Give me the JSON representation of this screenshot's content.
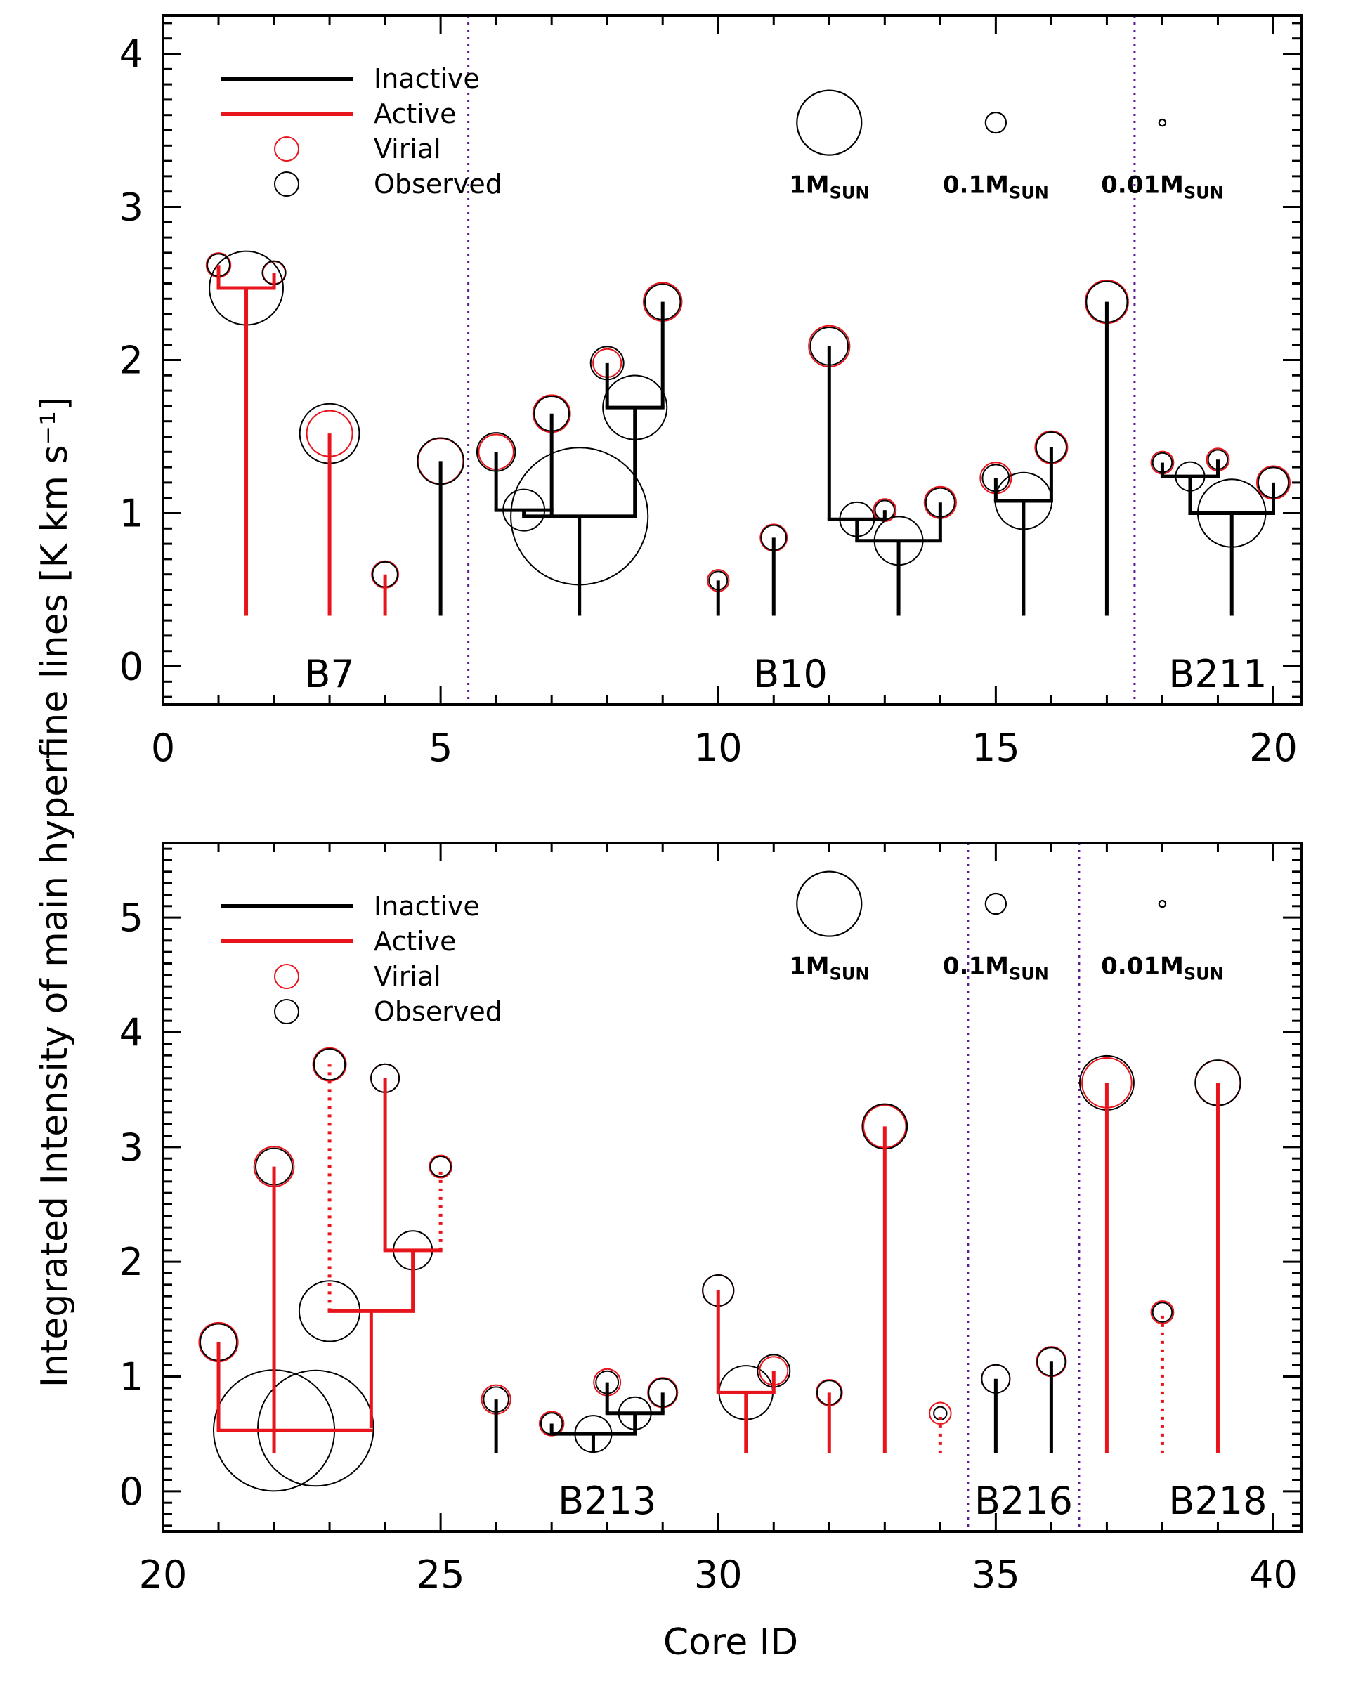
{
  "figure": {
    "ylabel": "Integrated Intensity of main hyperfine lines [K km s⁻¹]",
    "xlabel": "Core ID"
  },
  "legend": {
    "inactive": "Inactive",
    "active": "Active",
    "virial": "Virial",
    "observed": "Observed"
  },
  "colors": {
    "inactive": "#000000",
    "active": "#e8141b",
    "boundary": "#5a1a96",
    "virial_circle": "#e8141b",
    "observed_circle": "#000000"
  },
  "chart_data": [
    {
      "type": "dendrogram",
      "xlim": [
        0,
        20.5
      ],
      "ylim": [
        -0.25,
        4.25
      ],
      "xticks": [
        0,
        5,
        10,
        15,
        20
      ],
      "yticks": [
        0,
        1,
        2,
        3,
        4
      ],
      "boundaries": [
        5.5,
        17.5
      ],
      "regions": [
        {
          "name": "B7",
          "x": 3
        },
        {
          "name": "B10",
          "x": 11.3
        },
        {
          "name": "B211",
          "x": 19
        }
      ],
      "scale_circles": [
        {
          "label": "1M",
          "sub": "SUN",
          "mass": 1,
          "x": 12,
          "y": 3.55
        },
        {
          "label": "0.1M",
          "sub": "SUN",
          "mass": 0.1,
          "x": 15,
          "y": 3.55
        },
        {
          "label": "0.01M",
          "sub": "SUN",
          "mass": 0.01,
          "x": 18,
          "y": 3.55
        }
      ],
      "branches": [
        {
          "x": 1,
          "y": 2.62,
          "from": 2.47,
          "cls": "active"
        },
        {
          "x": 2,
          "y": 2.57,
          "from": 2.47,
          "cls": "active"
        },
        {
          "x": 1.5,
          "y": 2.47,
          "from": 0.33,
          "cls": "active"
        },
        {
          "x": 3,
          "y": 1.52,
          "from": 0.33,
          "cls": "active"
        },
        {
          "x": 4,
          "y": 0.6,
          "from": 0.33,
          "cls": "active"
        },
        {
          "x": 5,
          "y": 1.34,
          "from": 0.33,
          "cls": "inactive"
        },
        {
          "x": 6,
          "y": 1.4,
          "from": 1.02,
          "cls": "inactive"
        },
        {
          "x": 7,
          "y": 1.65,
          "from": 0.99,
          "cls": "inactive"
        },
        {
          "x": 6.5,
          "y": 1.02,
          "from": 0.98,
          "cls": "inactive"
        },
        {
          "x": 8,
          "y": 1.98,
          "from": 1.69,
          "cls": "inactive"
        },
        {
          "x": 9,
          "y": 2.38,
          "from": 1.69,
          "cls": "inactive"
        },
        {
          "x": 8.5,
          "y": 1.69,
          "from": 0.98,
          "cls": "inactive"
        },
        {
          "x": 7.5,
          "y": 0.98,
          "from": 0.33,
          "cls": "inactive"
        },
        {
          "x": 10,
          "y": 0.56,
          "from": 0.33,
          "cls": "inactive"
        },
        {
          "x": 11,
          "y": 0.84,
          "from": 0.33,
          "cls": "inactive"
        },
        {
          "x": 12,
          "y": 2.09,
          "from": 0.96,
          "cls": "inactive"
        },
        {
          "x": 13,
          "y": 1.02,
          "from": 0.96,
          "cls": "inactive"
        },
        {
          "x": 12.5,
          "y": 0.96,
          "from": 0.82,
          "cls": "inactive"
        },
        {
          "x": 14,
          "y": 1.07,
          "from": 0.82,
          "cls": "inactive"
        },
        {
          "x": 13.25,
          "y": 0.82,
          "from": 0.33,
          "cls": "inactive"
        },
        {
          "x": 15,
          "y": 1.23,
          "from": 1.08,
          "cls": "inactive"
        },
        {
          "x": 16,
          "y": 1.43,
          "from": 1.08,
          "cls": "inactive"
        },
        {
          "x": 15.5,
          "y": 1.08,
          "from": 0.33,
          "cls": "inactive"
        },
        {
          "x": 17,
          "y": 2.38,
          "from": 0.33,
          "cls": "inactive"
        },
        {
          "x": 18,
          "y": 1.33,
          "from": 1.24,
          "cls": "inactive"
        },
        {
          "x": 19,
          "y": 1.35,
          "from": 1.24,
          "cls": "inactive"
        },
        {
          "x": 18.5,
          "y": 1.24,
          "from": 1.0,
          "cls": "inactive"
        },
        {
          "x": 20,
          "y": 1.2,
          "from": 1.0,
          "cls": "inactive"
        },
        {
          "x": 19.25,
          "y": 1.0,
          "from": 0.33,
          "cls": "inactive"
        }
      ],
      "joins": [
        {
          "x1": 1,
          "x2": 2,
          "y": 2.47,
          "cls": "active"
        },
        {
          "x1": 6,
          "x2": 7,
          "y": 1.02,
          "cls": "inactive"
        },
        {
          "x1": 8,
          "x2": 9,
          "y": 1.69,
          "cls": "inactive"
        },
        {
          "x1": 6.5,
          "x2": 8.5,
          "y": 0.98,
          "cls": "inactive"
        },
        {
          "x1": 12,
          "x2": 13,
          "y": 0.96,
          "cls": "inactive"
        },
        {
          "x1": 12.5,
          "x2": 14,
          "y": 0.82,
          "cls": "inactive"
        },
        {
          "x1": 15,
          "x2": 16,
          "y": 1.08,
          "cls": "inactive"
        },
        {
          "x1": 18,
          "x2": 19,
          "y": 1.24,
          "cls": "inactive"
        },
        {
          "x1": 18.5,
          "x2": 20,
          "y": 1.0,
          "cls": "inactive"
        }
      ],
      "circles": [
        {
          "x": 1,
          "y": 2.62,
          "observed": 0.12,
          "virial": 0.14
        },
        {
          "x": 2,
          "y": 2.57,
          "observed": 0.13,
          "virial": 0.12
        },
        {
          "x": 1.5,
          "y": 2.47,
          "observed": 1.3,
          "virial": null
        },
        {
          "x": 3,
          "y": 1.52,
          "observed": 0.85,
          "virial": 0.5
        },
        {
          "x": 4,
          "y": 0.6,
          "observed": 0.15,
          "virial": 0.17
        },
        {
          "x": 5,
          "y": 1.34,
          "observed": 0.51,
          "virial": 0.49
        },
        {
          "x": 6,
          "y": 1.4,
          "observed": 0.35,
          "virial": 0.29
        },
        {
          "x": 6.5,
          "y": 1.02,
          "observed": 0.41,
          "virial": null
        },
        {
          "x": 7,
          "y": 1.65,
          "observed": 0.29,
          "virial": 0.33
        },
        {
          "x": 7.5,
          "y": 0.98,
          "observed": 4.5,
          "virial": null
        },
        {
          "x": 8,
          "y": 1.98,
          "observed": 0.26,
          "virial": 0.19
        },
        {
          "x": 8.5,
          "y": 1.69,
          "observed": 0.98,
          "virial": null
        },
        {
          "x": 9,
          "y": 2.38,
          "observed": 0.3,
          "virial": 0.35
        },
        {
          "x": 10,
          "y": 0.56,
          "observed": 0.08,
          "virial": 0.11
        },
        {
          "x": 11,
          "y": 0.84,
          "observed": 0.15,
          "virial": 0.17
        },
        {
          "x": 12,
          "y": 2.09,
          "observed": 0.34,
          "virial": 0.4
        },
        {
          "x": 12.5,
          "y": 0.96,
          "observed": 0.28,
          "virial": null
        },
        {
          "x": 13,
          "y": 1.02,
          "observed": 0.09,
          "virial": 0.12
        },
        {
          "x": 13.25,
          "y": 0.82,
          "observed": 0.56,
          "virial": null
        },
        {
          "x": 14,
          "y": 1.07,
          "observed": 0.2,
          "virial": 0.24
        },
        {
          "x": 15,
          "y": 1.23,
          "observed": 0.17,
          "virial": 0.23
        },
        {
          "x": 15.5,
          "y": 1.08,
          "observed": 0.77,
          "virial": null
        },
        {
          "x": 16,
          "y": 1.43,
          "observed": 0.22,
          "virial": 0.25
        },
        {
          "x": 17,
          "y": 2.38,
          "observed": 0.4,
          "virial": 0.44
        },
        {
          "x": 18,
          "y": 1.33,
          "observed": 0.09,
          "virial": 0.12
        },
        {
          "x": 18.5,
          "y": 1.24,
          "observed": 0.2,
          "virial": null
        },
        {
          "x": 19,
          "y": 1.35,
          "observed": 0.09,
          "virial": 0.12
        },
        {
          "x": 19.25,
          "y": 1.0,
          "observed": 1.1,
          "virial": null
        },
        {
          "x": 20,
          "y": 1.2,
          "observed": 0.22,
          "virial": 0.26
        }
      ]
    },
    {
      "type": "dendrogram",
      "xlim": [
        20,
        40.5
      ],
      "ylim": [
        -0.35,
        5.65
      ],
      "xticks": [
        20,
        25,
        30,
        35,
        40
      ],
      "yticks": [
        0,
        1,
        2,
        3,
        4,
        5
      ],
      "boundaries": [
        34.5,
        36.5
      ],
      "regions": [
        {
          "name": "B213",
          "x": 28
        },
        {
          "name": "B216",
          "x": 35.5
        },
        {
          "name": "B218",
          "x": 39
        }
      ],
      "scale_circles": [
        {
          "label": "1M",
          "sub": "SUN",
          "mass": 1,
          "x": 32,
          "y": 5.12
        },
        {
          "label": "0.1M",
          "sub": "SUN",
          "mass": 0.1,
          "x": 35,
          "y": 5.12
        },
        {
          "label": "0.01M",
          "sub": "SUN",
          "mass": 0.01,
          "x": 38,
          "y": 5.12
        }
      ],
      "branches": [
        {
          "x": 21,
          "y": 1.3,
          "from": 0.53,
          "cls": "active"
        },
        {
          "x": 22,
          "y": 2.83,
          "from": 0.53,
          "cls": "active"
        },
        {
          "x": 23,
          "y": 3.72,
          "from": 1.57,
          "cls": "active",
          "dotted": true
        },
        {
          "x": 24,
          "y": 3.6,
          "from": 2.1,
          "cls": "active"
        },
        {
          "x": 25,
          "y": 2.83,
          "from": 2.1,
          "cls": "active",
          "dotted": true
        },
        {
          "x": 24.5,
          "y": 2.1,
          "from": 1.57,
          "cls": "active"
        },
        {
          "x": 23.75,
          "y": 1.57,
          "from": 0.55,
          "cls": "active"
        },
        {
          "x": 22,
          "y": 0.53,
          "from": 0.33,
          "cls": "active"
        },
        {
          "x": 26,
          "y": 0.8,
          "from": 0.33,
          "cls": "inactive"
        },
        {
          "x": 27,
          "y": 0.59,
          "from": 0.5,
          "cls": "inactive"
        },
        {
          "x": 28,
          "y": 0.95,
          "from": 0.68,
          "cls": "inactive"
        },
        {
          "x": 29,
          "y": 0.86,
          "from": 0.68,
          "cls": "inactive"
        },
        {
          "x": 28.5,
          "y": 0.68,
          "from": 0.5,
          "cls": "inactive"
        },
        {
          "x": 27.75,
          "y": 0.5,
          "from": 0.33,
          "cls": "inactive"
        },
        {
          "x": 30,
          "y": 1.75,
          "from": 0.86,
          "cls": "active"
        },
        {
          "x": 31,
          "y": 1.05,
          "from": 0.86,
          "cls": "active"
        },
        {
          "x": 30.5,
          "y": 0.86,
          "from": 0.33,
          "cls": "active"
        },
        {
          "x": 32,
          "y": 0.86,
          "from": 0.33,
          "cls": "active"
        },
        {
          "x": 33,
          "y": 3.18,
          "from": 0.33,
          "cls": "active"
        },
        {
          "x": 34,
          "y": 0.68,
          "from": 0.33,
          "cls": "active",
          "dotted": true
        },
        {
          "x": 35,
          "y": 0.98,
          "from": 0.33,
          "cls": "inactive"
        },
        {
          "x": 36,
          "y": 1.13,
          "from": 0.33,
          "cls": "inactive"
        },
        {
          "x": 37,
          "y": 3.56,
          "from": 0.33,
          "cls": "active"
        },
        {
          "x": 38,
          "y": 1.56,
          "from": 0.33,
          "cls": "active",
          "dotted": true
        },
        {
          "x": 39,
          "y": 3.56,
          "from": 0.33,
          "cls": "active"
        }
      ],
      "joins": [
        {
          "x1": 21,
          "x2": 23.75,
          "y": 0.53,
          "cls": "active"
        },
        {
          "x1": 23,
          "x2": 24.5,
          "y": 1.57,
          "cls": "active"
        },
        {
          "x1": 24,
          "x2": 25,
          "y": 2.1,
          "cls": "active"
        },
        {
          "x1": 28,
          "x2": 29,
          "y": 0.68,
          "cls": "inactive"
        },
        {
          "x1": 27,
          "x2": 28.5,
          "y": 0.5,
          "cls": "inactive"
        },
        {
          "x1": 30,
          "x2": 31,
          "y": 0.86,
          "cls": "active"
        }
      ],
      "circles": [
        {
          "x": 21,
          "y": 1.3,
          "observed": 0.32,
          "virial": 0.36
        },
        {
          "x": 22,
          "y": 0.53,
          "observed": 3.5,
          "virial": null
        },
        {
          "x": 22,
          "y": 2.83,
          "observed": 0.32,
          "virial": 0.38
        },
        {
          "x": 22.75,
          "y": 0.55,
          "observed": 3.2,
          "virial": null
        },
        {
          "x": 23,
          "y": 1.57,
          "observed": 0.88,
          "virial": null
        },
        {
          "x": 23,
          "y": 3.72,
          "observed": 0.23,
          "virial": 0.26
        },
        {
          "x": 24,
          "y": 3.6,
          "observed": 0.19,
          "virial": 0.19
        },
        {
          "x": 24.5,
          "y": 2.1,
          "observed": 0.36,
          "virial": null
        },
        {
          "x": 25,
          "y": 2.83,
          "observed": 0.1,
          "virial": 0.12
        },
        {
          "x": 26,
          "y": 0.8,
          "observed": 0.15,
          "virial": 0.2
        },
        {
          "x": 27,
          "y": 0.59,
          "observed": 0.11,
          "virial": 0.14
        },
        {
          "x": 27.75,
          "y": 0.5,
          "observed": 0.32,
          "virial": null
        },
        {
          "x": 28,
          "y": 0.95,
          "observed": 0.12,
          "virial": 0.17
        },
        {
          "x": 28.5,
          "y": 0.68,
          "observed": 0.25,
          "virial": null
        },
        {
          "x": 29,
          "y": 0.86,
          "observed": 0.19,
          "virial": 0.21
        },
        {
          "x": 30,
          "y": 1.75,
          "observed": 0.23,
          "virial": 0.23
        },
        {
          "x": 30.5,
          "y": 0.86,
          "observed": 0.69,
          "virial": null
        },
        {
          "x": 31,
          "y": 1.05,
          "observed": 0.25,
          "virial": 0.19
        },
        {
          "x": 32,
          "y": 0.86,
          "observed": 0.14,
          "virial": 0.16
        },
        {
          "x": 33,
          "y": 3.18,
          "observed": 0.48,
          "virial": 0.43
        },
        {
          "x": 34,
          "y": 0.68,
          "observed": 0.04,
          "virial": 0.11
        },
        {
          "x": 35,
          "y": 0.98,
          "observed": 0.19,
          "virial": 0.19
        },
        {
          "x": 36,
          "y": 1.13,
          "observed": 0.19,
          "virial": 0.21
        },
        {
          "x": 37,
          "y": 3.56,
          "observed": 0.7,
          "virial": 0.59
        },
        {
          "x": 38,
          "y": 1.56,
          "observed": 0.09,
          "virial": 0.12
        },
        {
          "x": 39,
          "y": 3.56,
          "observed": 0.49,
          "virial": 0.48
        }
      ]
    }
  ]
}
